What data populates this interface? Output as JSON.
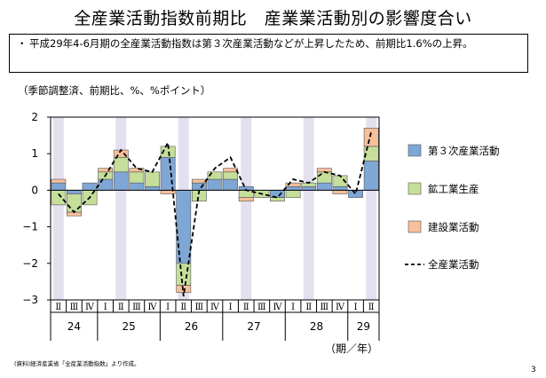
{
  "title": "全産業活動指数前期比　産業業活動別の影響度合い",
  "summary": {
    "bullet": "・",
    "text": "平成29年4-6月期の全産業活動指数は第３次産業活動などが上昇したため、前期比1.6%の上昇。"
  },
  "unit_note": "（季節調整済、前期比、%、%ポイント）",
  "source": "(資料)経済産業省「全産業活動指数」より作成。",
  "page_number": "3",
  "chart_data": {
    "type": "bar",
    "stacked": true,
    "categories": [
      "24-II",
      "24-III",
      "24-IV",
      "25-I",
      "25-II",
      "25-III",
      "25-IV",
      "26-I",
      "26-II",
      "26-III",
      "26-IV",
      "27-I",
      "27-II",
      "27-III",
      "27-IV",
      "28-I",
      "28-II",
      "28-III",
      "28-IV",
      "29-I",
      "29-II"
    ],
    "quarter_labels": [
      "Ⅱ",
      "Ⅲ",
      "Ⅳ",
      "Ⅰ",
      "Ⅱ",
      "Ⅲ",
      "Ⅳ",
      "Ⅰ",
      "Ⅱ",
      "Ⅲ",
      "Ⅳ",
      "Ⅰ",
      "Ⅱ",
      "Ⅲ",
      "Ⅳ",
      "Ⅰ",
      "Ⅱ",
      "Ⅲ",
      "Ⅳ",
      "Ⅰ",
      "Ⅱ"
    ],
    "year_groups": [
      {
        "label": "24",
        "count": 3
      },
      {
        "label": "25",
        "count": 4
      },
      {
        "label": "26",
        "count": 4
      },
      {
        "label": "27",
        "count": 4
      },
      {
        "label": "28",
        "count": 4
      },
      {
        "label": "29",
        "count": 2
      }
    ],
    "x_unit_label": "（期／年）",
    "shaded_quarter": "Ⅱ",
    "series": [
      {
        "name": "第３次産業活動",
        "kind": "bar",
        "color": "#7fa7d6",
        "values": [
          0.2,
          -0.1,
          0.2,
          0.3,
          0.5,
          0.2,
          0.1,
          0.9,
          -2.0,
          0.2,
          0.3,
          0.3,
          0.1,
          0.0,
          -0.2,
          0.1,
          0.1,
          0.2,
          0.1,
          -0.2,
          0.8
        ]
      },
      {
        "name": "鉱工業生産",
        "kind": "bar",
        "color": "#c5df9b",
        "values": [
          -0.4,
          -0.5,
          -0.4,
          0.2,
          0.4,
          0.3,
          0.4,
          0.3,
          -0.6,
          -0.3,
          0.2,
          0.2,
          -0.2,
          -0.2,
          -0.1,
          -0.2,
          0.1,
          0.3,
          0.3,
          0.0,
          0.4
        ]
      },
      {
        "name": "建設業活動",
        "kind": "bar",
        "color": "#f7bf9a",
        "values": [
          0.1,
          -0.1,
          0.0,
          0.1,
          0.2,
          0.1,
          0.0,
          -0.1,
          -0.2,
          0.1,
          0.0,
          0.1,
          -0.1,
          0.0,
          0.0,
          0.1,
          0.0,
          0.1,
          -0.1,
          0.0,
          0.5
        ]
      },
      {
        "name": "全産業活動",
        "kind": "line",
        "color": "#000000",
        "style": "dashed",
        "values": [
          -0.1,
          -0.6,
          -0.2,
          0.4,
          1.1,
          0.6,
          0.5,
          1.3,
          -2.9,
          0.0,
          0.6,
          0.9,
          0.0,
          -0.1,
          -0.2,
          0.3,
          0.2,
          0.5,
          0.4,
          -0.1,
          1.6
        ]
      }
    ],
    "ylim": [
      -3,
      2
    ],
    "yticks": [
      "2",
      "1",
      "0",
      "−1",
      "−2",
      "−3"
    ],
    "legend_position": "right"
  }
}
